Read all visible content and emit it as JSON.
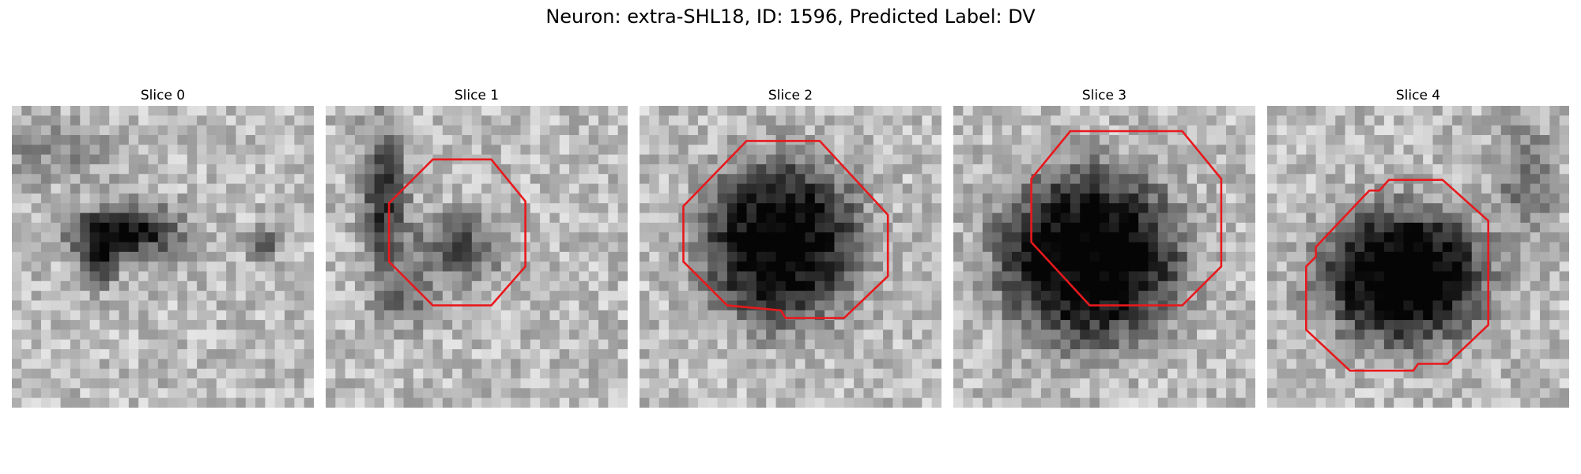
{
  "figure": {
    "title": "Neuron: extra-SHL18, ID: 1596, Predicted Label: DV"
  },
  "panels": [
    {
      "title": "Slice 0",
      "has_contour": false
    },
    {
      "title": "Slice 1",
      "has_contour": true
    },
    {
      "title": "Slice 2",
      "has_contour": true
    },
    {
      "title": "Slice 3",
      "has_contour": true
    },
    {
      "title": "Slice 4",
      "has_contour": true
    }
  ],
  "colors": {
    "contour": "#e8191d",
    "background": "#ffffff"
  }
}
